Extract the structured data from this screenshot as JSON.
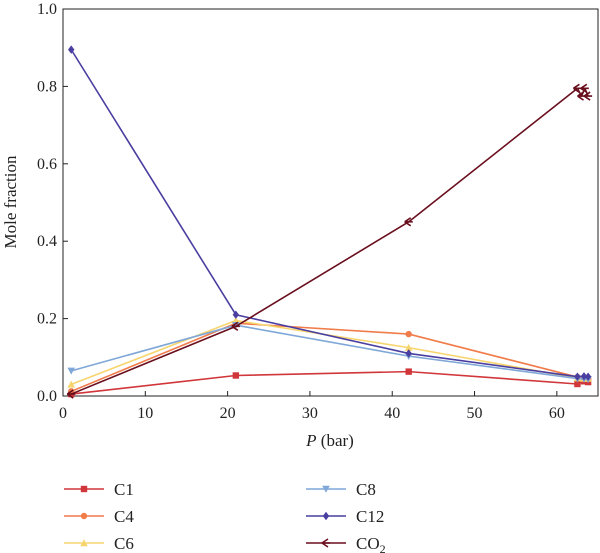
{
  "chart_data": {
    "type": "line",
    "xlabel": "P (bar)",
    "xlabel_italic": "P",
    "xlabel_rest": " (bar)",
    "ylabel": "Mole fraction",
    "xlim": [
      0,
      65
    ],
    "ylim": [
      0,
      1.0
    ],
    "xticks": [
      0,
      10,
      20,
      30,
      40,
      50,
      60
    ],
    "yticks": [
      0.0,
      0.2,
      0.4,
      0.6,
      0.8,
      1.0
    ],
    "ytick_labels": [
      "0.0",
      "0.2",
      "0.4",
      "0.6",
      "0.8",
      "1.0"
    ],
    "grid": false,
    "legend_position": "bottom",
    "series": [
      {
        "name": "C1",
        "color": "#d0363a",
        "marker": "square",
        "x": [
          1,
          21,
          42,
          62.5,
          63.3,
          63.8
        ],
        "y": [
          0.005,
          0.053,
          0.063,
          0.031,
          0.038,
          0.036
        ]
      },
      {
        "name": "C4",
        "color": "#f07c4a",
        "marker": "circle",
        "x": [
          1,
          21,
          42,
          62.5,
          63.3,
          63.8
        ],
        "y": [
          0.012,
          0.188,
          0.16,
          0.049,
          0.047,
          0.046
        ]
      },
      {
        "name": "C6",
        "color": "#f7d56e",
        "marker": "triangle-up",
        "x": [
          1,
          21,
          42,
          62.5,
          63.3,
          63.8
        ],
        "y": [
          0.03,
          0.195,
          0.125,
          0.046,
          0.045,
          0.045
        ]
      },
      {
        "name": "C8",
        "color": "#7fa7d8",
        "marker": "triangle-down",
        "x": [
          1,
          21,
          42,
          62.5,
          63.3,
          63.8
        ],
        "y": [
          0.065,
          0.183,
          0.103,
          0.045,
          0.044,
          0.043
        ]
      },
      {
        "name": "C12",
        "color": "#4a3fa0",
        "marker": "diamond",
        "x": [
          1,
          21,
          42,
          62.5,
          63.3,
          63.8
        ],
        "y": [
          0.895,
          0.21,
          0.11,
          0.05,
          0.051,
          0.05
        ]
      },
      {
        "name": "CO",
        "name_sub": "2",
        "color": "#6a0f1e",
        "marker": "tri-left",
        "x": [
          1,
          21,
          42,
          62.5,
          63.0,
          63.4,
          63.8
        ],
        "y": [
          0.005,
          0.18,
          0.45,
          0.795,
          0.775,
          0.795,
          0.775
        ]
      }
    ]
  }
}
